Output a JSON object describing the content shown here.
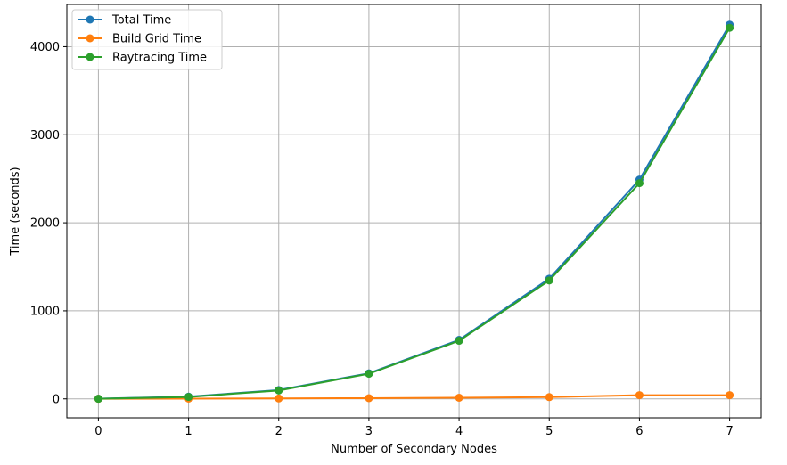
{
  "chart_data": {
    "type": "line",
    "xlabel": "Number of Secondary Nodes",
    "ylabel": "Time (seconds)",
    "x": [
      0,
      1,
      2,
      3,
      4,
      5,
      6,
      7
    ],
    "xticks": [
      "0",
      "1",
      "2",
      "3",
      "4",
      "5",
      "6",
      "7"
    ],
    "yticks": [
      0,
      1000,
      2000,
      3000,
      4000
    ],
    "xlim": [
      -0.35,
      7.35
    ],
    "ylim": [
      -215,
      4480
    ],
    "grid": true,
    "legend_position": "top-left",
    "series": [
      {
        "name": "Total Time",
        "color": "#1f77b4",
        "values": [
          2,
          25,
          100,
          290,
          670,
          1365,
          2490,
          4250
        ]
      },
      {
        "name": "Build Grid Time",
        "color": "#ff7f0e",
        "values": [
          1,
          3,
          5,
          8,
          13,
          20,
          42,
          42
        ]
      },
      {
        "name": "Raytracing Time",
        "color": "#2ca02c",
        "values": [
          1,
          22,
          95,
          285,
          660,
          1345,
          2450,
          4215
        ]
      }
    ]
  }
}
